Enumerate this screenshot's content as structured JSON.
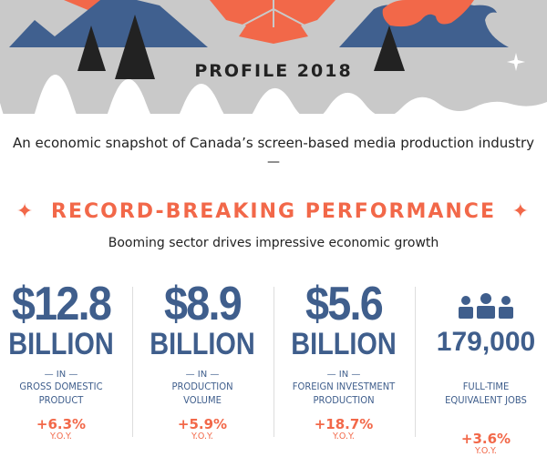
{
  "header": {
    "title": "PROFILE 2018"
  },
  "intro": {
    "text": "An economic snapshot of Canada’s screen-based media production industry",
    "dash": "—"
  },
  "section": {
    "heading": "RECORD-BREAKING PERFORMANCE",
    "star": "✦",
    "subtitle": "Booming sector drives impressive economic growth"
  },
  "colors": {
    "blue": "#3f5e8c",
    "orange": "#f26849",
    "gray": "#c9c9c9"
  },
  "stats": [
    {
      "value": "$12.8",
      "unit": "BILLION",
      "in": "— IN —",
      "label1": "GROSS DOMESTIC",
      "label2": "PRODUCT",
      "change": "+6.3%",
      "yoy": "Y.O.Y."
    },
    {
      "value": "$8.9",
      "unit": "BILLION",
      "in": "— IN —",
      "label1": "PRODUCTION",
      "label2": "VOLUME",
      "change": "+5.9%",
      "yoy": "Y.O.Y."
    },
    {
      "value": "$5.6",
      "unit": "BILLION",
      "in": "— IN —",
      "label1": "FOREIGN INVESTMENT",
      "label2": "PRODUCTION",
      "change": "+18.7%",
      "yoy": "Y.O.Y."
    },
    {
      "icon": "people-icon",
      "value": "179,000",
      "label1": "FULL-TIME",
      "label2": "EQUIVALENT JOBS",
      "change": "+3.6%",
      "yoy": "Y.O.Y."
    }
  ]
}
